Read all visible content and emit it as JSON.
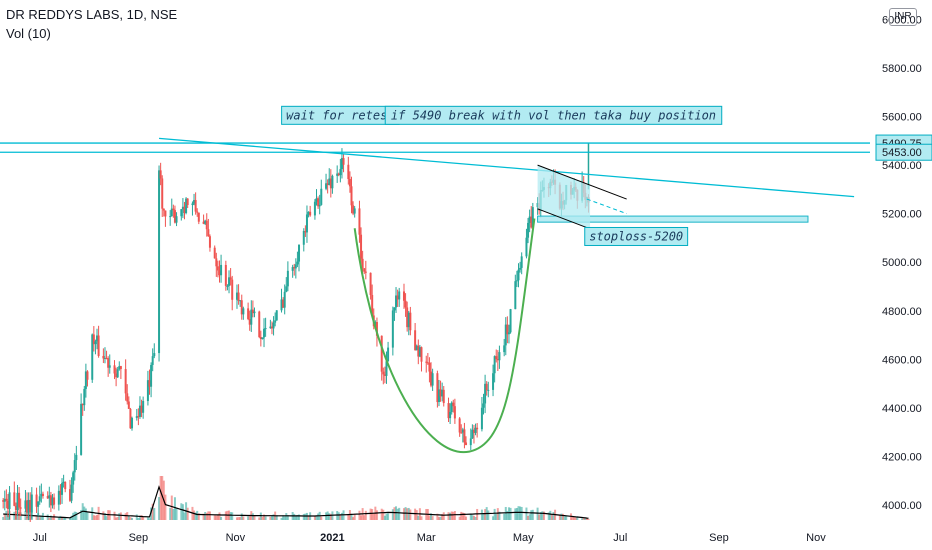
{
  "header": {
    "title": "DR REDDYS LABS, 1D, NSE",
    "volume_label": "Vol (10)",
    "currency": "INR"
  },
  "colors": {
    "up": "#26a69a",
    "down": "#ef5350",
    "trendline": "#00bcd4",
    "cup": "#4caf50",
    "annot_bg": "#b2ebf2",
    "annot_border": "#00acc1",
    "channel": "#000000"
  },
  "chart_data": {
    "type": "candlestick",
    "y_axis": {
      "ticks": [
        4000,
        4200,
        4400,
        4600,
        4800,
        5000,
        5200,
        5400,
        5600,
        5800,
        6000
      ],
      "tick_labels": [
        "4000.00",
        "4200.00",
        "4400.00",
        "4600.00",
        "4800.00",
        "5000.00",
        "5200.00",
        "5400.00",
        "5600.00",
        "5800.00",
        "6000.00"
      ],
      "ylim": [
        3930,
        6080
      ]
    },
    "x_axis": {
      "labels": [
        "Jul",
        "Sep",
        "Nov",
        "2021",
        "Mar",
        "May",
        "Jul",
        "Sep",
        "Nov"
      ],
      "bold_label": "2021",
      "label_dates": [
        "2020-07-01",
        "2020-09-01",
        "2020-11-01",
        "2021-01-01",
        "2021-03-01",
        "2021-05-01",
        "2021-07-01",
        "2021-09-01",
        "2021-11-01"
      ],
      "xlim": [
        "2020-06-06",
        "2021-12-05"
      ]
    },
    "price_path": [
      [
        "2020-06-06",
        4020
      ],
      [
        "2020-06-25",
        4010
      ],
      [
        "2020-07-20",
        4060
      ],
      [
        "2020-07-28",
        4440
      ],
      [
        "2020-08-03",
        4680
      ],
      [
        "2020-08-12",
        4600
      ],
      [
        "2020-08-20",
        4560
      ],
      [
        "2020-08-27",
        4350
      ],
      [
        "2020-09-03",
        4400
      ],
      [
        "2020-09-08",
        4500
      ],
      [
        "2020-09-12",
        4650
      ],
      [
        "2020-09-14",
        5380
      ],
      [
        "2020-09-18",
        5150
      ],
      [
        "2020-09-24",
        5200
      ],
      [
        "2020-10-01",
        5250
      ],
      [
        "2020-10-08",
        5210
      ],
      [
        "2020-10-15",
        5100
      ],
      [
        "2020-10-22",
        4980
      ],
      [
        "2020-10-29",
        4900
      ],
      [
        "2020-11-06",
        4820
      ],
      [
        "2020-11-13",
        4760
      ],
      [
        "2020-11-20",
        4700
      ],
      [
        "2020-11-28",
        4780
      ],
      [
        "2020-12-05",
        4960
      ],
      [
        "2020-12-12",
        5080
      ],
      [
        "2020-12-20",
        5230
      ],
      [
        "2020-12-26",
        5300
      ],
      [
        "2021-01-03",
        5360
      ],
      [
        "2021-01-07",
        5400
      ],
      [
        "2021-01-12",
        5300
      ],
      [
        "2021-01-18",
        5080
      ],
      [
        "2021-01-24",
        4900
      ],
      [
        "2021-01-30",
        4620
      ],
      [
        "2021-02-03",
        4520
      ],
      [
        "2021-02-06",
        4780
      ],
      [
        "2021-02-12",
        4850
      ],
      [
        "2021-02-20",
        4720
      ],
      [
        "2021-02-26",
        4600
      ],
      [
        "2021-03-05",
        4500
      ],
      [
        "2021-03-12",
        4420
      ],
      [
        "2021-03-18",
        4380
      ],
      [
        "2021-03-26",
        4250
      ],
      [
        "2021-03-31",
        4300
      ],
      [
        "2021-04-05",
        4420
      ],
      [
        "2021-04-10",
        4520
      ],
      [
        "2021-04-16",
        4620
      ],
      [
        "2021-04-22",
        4750
      ],
      [
        "2021-04-28",
        5000
      ],
      [
        "2021-05-03",
        5100
      ],
      [
        "2021-05-07",
        5200
      ],
      [
        "2021-05-11",
        5250
      ],
      [
        "2021-05-14",
        5310
      ],
      [
        "2021-05-18",
        5330
      ],
      [
        "2021-05-24",
        5250
      ],
      [
        "2021-05-28",
        5310
      ],
      [
        "2021-06-03",
        5260
      ],
      [
        "2021-06-08",
        5290
      ],
      [
        "2021-06-11",
        5270
      ]
    ],
    "volume_axis_max": 160,
    "volume_path": [
      [
        "2020-06-06",
        28
      ],
      [
        "2020-07-20",
        10
      ],
      [
        "2020-07-28",
        40
      ],
      [
        "2020-08-12",
        25
      ],
      [
        "2020-09-08",
        14
      ],
      [
        "2020-09-14",
        150
      ],
      [
        "2020-09-18",
        70
      ],
      [
        "2020-10-08",
        25
      ],
      [
        "2020-11-13",
        20
      ],
      [
        "2020-12-20",
        18
      ],
      [
        "2021-01-12",
        25
      ],
      [
        "2021-02-06",
        35
      ],
      [
        "2021-03-12",
        22
      ],
      [
        "2021-04-28",
        35
      ],
      [
        "2021-05-14",
        30
      ],
      [
        "2021-06-11",
        8
      ]
    ],
    "horizontal_levels": [
      {
        "price": 5490.75,
        "label": "5490.75"
      },
      {
        "price": 5453.0,
        "label": "5453.00"
      }
    ],
    "support_zone": {
      "from": 5165,
      "to": 5190,
      "start": "2021-05-10",
      "end": "2021-10-27"
    },
    "descending_trendline": {
      "from": [
        "2020-09-14",
        5510
      ],
      "to": [
        "2021-11-25",
        5270
      ]
    },
    "channel": {
      "upper": [
        [
          "2021-05-10",
          5400
        ],
        [
          "2021-07-05",
          5260
        ]
      ],
      "lower": [
        [
          "2021-05-10",
          5220
        ],
        [
          "2021-07-05",
          5080
        ]
      ],
      "fill_end": "2021-06-12",
      "projection": [
        [
          "2021-06-10",
          5260
        ],
        [
          "2021-07-05",
          5200
        ]
      ]
    },
    "cup_curve": {
      "start": [
        "2021-01-15",
        5140
      ],
      "bottom": [
        "2021-03-28",
        4220
      ],
      "end": [
        "2021-05-08",
        5180
      ]
    },
    "annotations": [
      {
        "text": "wait for retest",
        "anchor": "2021-01-06",
        "price": 5605
      },
      {
        "text": "if 5490 break with vol then taka buy position",
        "anchor": "2021-05-20",
        "price": 5605
      },
      {
        "text": "stoploss-5200",
        "anchor": "2021-07-11",
        "price": 5106
      }
    ],
    "breakout_spike": {
      "date": "2021-06-11",
      "high": 5490
    }
  }
}
